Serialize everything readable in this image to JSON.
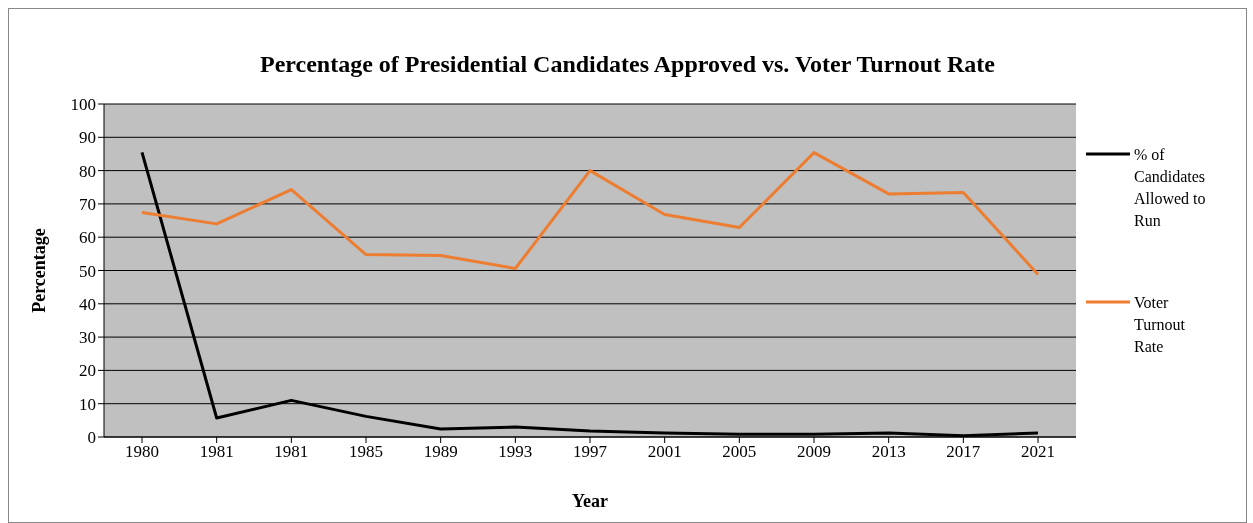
{
  "chart_data": {
    "type": "line",
    "title": "Percentage of Presidential Candidates Approved vs. Voter Turnout Rate",
    "xlabel": "Year",
    "ylabel": "Percentage",
    "categories": [
      "1980",
      "1981",
      "1981",
      "1985",
      "1989",
      "1993",
      "1997",
      "2001",
      "2005",
      "2009",
      "2013",
      "2017",
      "2021"
    ],
    "series": [
      {
        "name": "% of Candidates Allowed to Run",
        "color": "#000000",
        "values": [
          85.5,
          5.7,
          11,
          6.2,
          2.4,
          3,
          1.8,
          1.2,
          0.8,
          0.8,
          1.2,
          0.4,
          1.2
        ]
      },
      {
        "name": "Voter Turnout Rate",
        "color": "#ed7d31",
        "values": [
          67.4,
          64,
          74.3,
          54.8,
          54.5,
          50.6,
          80,
          66.8,
          62.9,
          85.4,
          73,
          73.4,
          48.8
        ]
      }
    ],
    "ylim": [
      0,
      100
    ],
    "yticks": [
      0,
      10,
      20,
      30,
      40,
      50,
      60,
      70,
      80,
      90,
      100
    ],
    "grid": "y",
    "legend": "right",
    "marker": "none",
    "line_style": "solid"
  }
}
